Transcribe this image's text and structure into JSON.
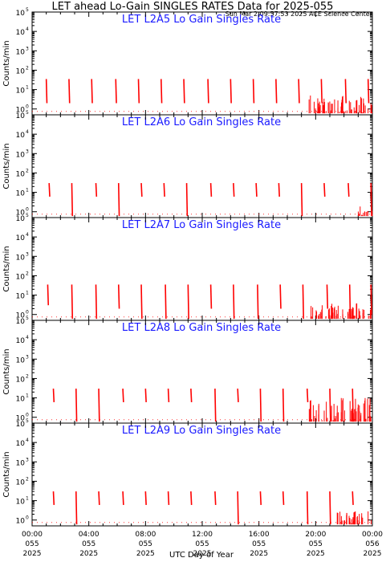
{
  "header": {
    "title": "LET ahead Lo-Gain SINGLES RATES Data for 2025-055",
    "timestamp": "Sun Mar  2 09:57:53 2025 ACE Science Center"
  },
  "axes": {
    "ylabel": "Counts/min",
    "xlabel": "UTC Day of Year",
    "y_tick_labels": [
      "10",
      "10",
      "10",
      "10",
      "10",
      "10"
    ],
    "y_tick_exponents": [
      "0",
      "1",
      "2",
      "3",
      "4",
      "5"
    ],
    "x_tick_time": [
      "00:00",
      "04:00",
      "08:00",
      "12:00",
      "16:00",
      "20:00",
      "00:00"
    ],
    "x_tick_doy": [
      "055",
      "055",
      "055",
      "055",
      "055",
      "055",
      "056"
    ],
    "x_tick_year": [
      "2025",
      "2025",
      "2025",
      "2025",
      "2025",
      "2025",
      "2025"
    ]
  },
  "colors": {
    "data": "#ff0000",
    "panel_title": "#1a1aff",
    "axis": "#000000"
  },
  "chart_data": [
    {
      "type": "line",
      "title": "LET L2A5 Lo Gain Singles Rate",
      "ylabel": "Counts/min",
      "xlabel": "",
      "x_unit": "hours of DOY 055",
      "ylim": [
        0.5,
        100000
      ],
      "xlim": [
        0,
        24
      ],
      "y_scale": "log",
      "series": [
        {
          "spikes": [
            [
              1.0,
              2,
              35
            ],
            [
              2.6,
              2,
              35
            ],
            [
              4.2,
              2,
              35
            ],
            [
              5.9,
              2,
              35
            ],
            [
              7.5,
              2,
              35
            ],
            [
              9.1,
              2,
              35
            ],
            [
              10.7,
              2,
              35
            ],
            [
              12.4,
              2,
              35
            ],
            [
              14.0,
              2,
              35
            ],
            [
              15.6,
              2,
              35
            ],
            [
              17.2,
              2,
              35
            ],
            [
              18.8,
              2,
              35
            ],
            [
              20.4,
              2,
              35
            ],
            [
              22.1,
              2,
              35
            ],
            [
              23.7,
              2,
              35
            ]
          ],
          "low_range": [
            19.5,
            24,
            0.6,
            5
          ]
        }
      ]
    },
    {
      "type": "line",
      "title": "LET L2A6 Lo Gain Singles Rate",
      "ylabel": "Counts/min",
      "xlabel": "",
      "x_unit": "hours of DOY 055",
      "ylim": [
        0.5,
        100000
      ],
      "xlim": [
        0,
        24
      ],
      "y_scale": "log",
      "series": [
        {
          "spikes": [
            [
              1.2,
              6,
              30
            ],
            [
              2.8,
              0.6,
              30
            ],
            [
              4.5,
              6,
              30
            ],
            [
              6.1,
              0.6,
              30
            ],
            [
              7.7,
              6,
              30
            ],
            [
              9.3,
              6,
              30
            ],
            [
              10.9,
              0.6,
              30
            ],
            [
              12.6,
              6,
              30
            ],
            [
              14.2,
              6,
              30
            ],
            [
              15.8,
              6,
              30
            ],
            [
              17.4,
              6,
              30
            ],
            [
              19.0,
              0.6,
              30
            ],
            [
              20.6,
              6,
              30
            ],
            [
              22.3,
              6,
              30
            ],
            [
              23.9,
              0.6,
              30
            ]
          ],
          "low_range": [
            23.0,
            24,
            0.6,
            2
          ]
        }
      ]
    },
    {
      "type": "line",
      "title": "LET L2A7 Lo Gain Singles Rate",
      "ylabel": "Counts/min",
      "xlabel": "",
      "x_unit": "hours of DOY 055",
      "ylim": [
        0.5,
        100000
      ],
      "xlim": [
        0,
        24
      ],
      "y_scale": "log",
      "series": [
        {
          "spikes": [
            [
              1.1,
              3,
              35
            ],
            [
              2.8,
              0.6,
              35
            ],
            [
              4.5,
              0.6,
              35
            ],
            [
              6.1,
              2,
              35
            ],
            [
              7.7,
              0.6,
              35
            ],
            [
              9.4,
              0.6,
              35
            ],
            [
              11.0,
              0.6,
              35
            ],
            [
              12.6,
              2,
              35
            ],
            [
              14.2,
              0.6,
              35
            ],
            [
              15.9,
              0.6,
              35
            ],
            [
              17.5,
              2,
              35
            ],
            [
              19.1,
              0.6,
              35
            ],
            [
              20.8,
              2,
              35
            ],
            [
              22.4,
              0.6,
              35
            ],
            [
              23.9,
              1,
              35
            ]
          ],
          "low_range": [
            19.5,
            24,
            0.6,
            4
          ]
        }
      ]
    },
    {
      "type": "line",
      "title": "LET L2A8 Lo Gain Singles Rate",
      "ylabel": "Counts/min",
      "xlabel": "",
      "x_unit": "hours of DOY 055",
      "ylim": [
        0.5,
        100000
      ],
      "xlim": [
        0,
        24
      ],
      "y_scale": "log",
      "series": [
        {
          "spikes": [
            [
              1.5,
              6,
              30
            ],
            [
              3.1,
              0.6,
              30
            ],
            [
              4.7,
              0.6,
              30
            ],
            [
              6.4,
              6,
              30
            ],
            [
              8.0,
              6,
              30
            ],
            [
              9.6,
              6,
              30
            ],
            [
              11.2,
              6,
              30
            ],
            [
              12.9,
              0.6,
              30
            ],
            [
              14.5,
              6,
              30
            ],
            [
              16.1,
              0.6,
              30
            ],
            [
              17.7,
              0.6,
              30
            ],
            [
              19.4,
              6,
              30
            ],
            [
              21.0,
              0.6,
              30
            ],
            [
              22.6,
              0.6,
              30
            ]
          ],
          "low_range": [
            19.5,
            24,
            0.6,
            10
          ]
        }
      ]
    },
    {
      "type": "line",
      "title": "LET L2A9 Lo Gain Singles Rate",
      "ylabel": "Counts/min",
      "xlabel": "",
      "x_unit": "hours of DOY 055",
      "ylim": [
        0.5,
        100000
      ],
      "xlim": [
        0,
        24
      ],
      "y_scale": "log",
      "series": [
        {
          "spikes": [
            [
              1.5,
              6,
              30
            ],
            [
              3.1,
              0.6,
              30
            ],
            [
              4.7,
              6,
              30
            ],
            [
              6.4,
              6,
              30
            ],
            [
              8.0,
              6,
              30
            ],
            [
              9.6,
              6,
              30
            ],
            [
              11.2,
              6,
              30
            ],
            [
              12.9,
              6,
              30
            ],
            [
              14.5,
              0.6,
              30
            ],
            [
              16.1,
              6,
              30
            ],
            [
              17.7,
              6,
              30
            ],
            [
              19.4,
              0.6,
              30
            ],
            [
              21.0,
              0.6,
              30
            ],
            [
              22.6,
              6,
              30
            ]
          ],
          "low_range": [
            21.5,
            24,
            0.6,
            3
          ]
        }
      ]
    }
  ]
}
